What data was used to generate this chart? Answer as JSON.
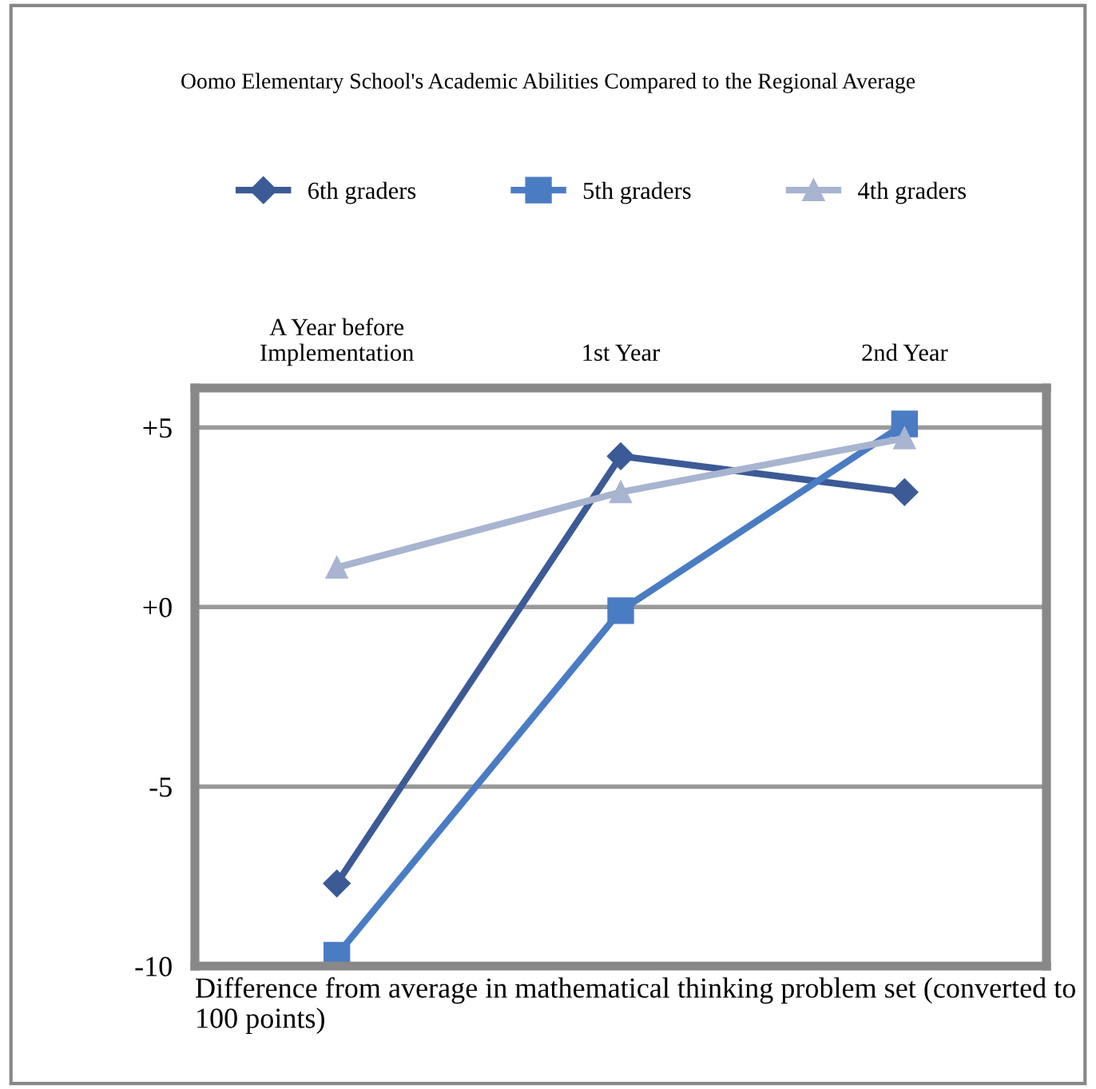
{
  "chart_data": {
    "type": "line",
    "title": "Oomo Elementary School's Academic Abilities Compared to the Regional Average",
    "categories": [
      "A Year before Implementation",
      "1st Year",
      "2nd Year"
    ],
    "series": [
      {
        "name": "6th graders",
        "color": "#3c5a96",
        "marker": "diamond",
        "values": [
          -7.7,
          4.2,
          3.2
        ]
      },
      {
        "name": "5th graders",
        "color": "#4a7cc4",
        "marker": "square",
        "values": [
          -9.7,
          -0.1,
          5.1
        ]
      },
      {
        "name": "4th graders",
        "color": "#a8b4d0",
        "marker": "triangle",
        "values": [
          1.1,
          3.2,
          4.7
        ]
      }
    ],
    "annotations": [
      "Difference from average in mathematical thinking problem set (converted to 100 points)"
    ],
    "ylim": [
      -10,
      6.1
    ],
    "yticks": [
      {
        "value": -10,
        "label": "-10"
      },
      {
        "value": -5,
        "label": "-5"
      },
      {
        "value": 0,
        "label": "+0"
      },
      {
        "value": 5,
        "label": "+5"
      }
    ],
    "grid": "y",
    "legend": "top",
    "line_style": "solid"
  }
}
